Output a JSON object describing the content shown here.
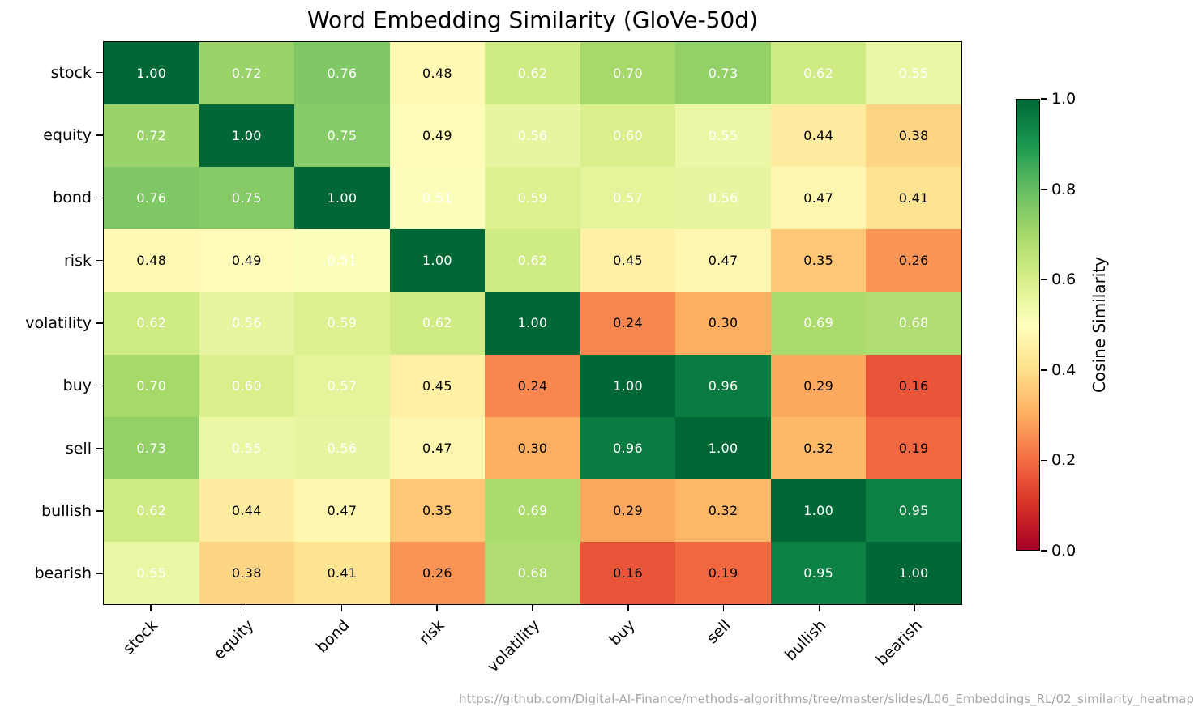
{
  "title": "Word Embedding Similarity (GloVe-50d)",
  "footer_url": "https://github.com/Digital-AI-Finance/methods-algorithms/tree/master/slides/L06_Embeddings_RL/02_similarity_heatmap",
  "chart_data": {
    "type": "heatmap",
    "title": "Word Embedding Similarity (GloVe-50d)",
    "x_labels": [
      "stock",
      "equity",
      "bond",
      "risk",
      "volatility",
      "buy",
      "sell",
      "bullish",
      "bearish"
    ],
    "y_labels": [
      "stock",
      "equity",
      "bond",
      "risk",
      "volatility",
      "buy",
      "sell",
      "bullish",
      "bearish"
    ],
    "matrix": [
      [
        1.0,
        0.72,
        0.76,
        0.48,
        0.62,
        0.7,
        0.73,
        0.62,
        0.55
      ],
      [
        0.72,
        1.0,
        0.75,
        0.49,
        0.56,
        0.6,
        0.55,
        0.44,
        0.38
      ],
      [
        0.76,
        0.75,
        1.0,
        0.51,
        0.59,
        0.57,
        0.56,
        0.47,
        0.41
      ],
      [
        0.48,
        0.49,
        0.51,
        1.0,
        0.62,
        0.45,
        0.47,
        0.35,
        0.26
      ],
      [
        0.62,
        0.56,
        0.59,
        0.62,
        1.0,
        0.24,
        0.3,
        0.69,
        0.68
      ],
      [
        0.7,
        0.6,
        0.57,
        0.45,
        0.24,
        1.0,
        0.96,
        0.29,
        0.16
      ],
      [
        0.73,
        0.55,
        0.56,
        0.47,
        0.3,
        0.96,
        1.0,
        0.32,
        0.19
      ],
      [
        0.62,
        0.44,
        0.47,
        0.35,
        0.69,
        0.29,
        0.32,
        1.0,
        0.95
      ],
      [
        0.55,
        0.38,
        0.41,
        0.26,
        0.68,
        0.16,
        0.19,
        0.95,
        1.0
      ]
    ],
    "vmin": 0.0,
    "vmax": 1.0,
    "colormap": {
      "name": "RdYlGn",
      "stops": [
        {
          "pos": 0.0,
          "color": "#a50026"
        },
        {
          "pos": 0.1,
          "color": "#d73027"
        },
        {
          "pos": 0.2,
          "color": "#f46d43"
        },
        {
          "pos": 0.3,
          "color": "#fdae61"
        },
        {
          "pos": 0.4,
          "color": "#fee08b"
        },
        {
          "pos": 0.5,
          "color": "#ffffbf"
        },
        {
          "pos": 0.6,
          "color": "#d9ef8b"
        },
        {
          "pos": 0.7,
          "color": "#a6d96a"
        },
        {
          "pos": 0.8,
          "color": "#66bd63"
        },
        {
          "pos": 0.9,
          "color": "#1a9850"
        },
        {
          "pos": 1.0,
          "color": "#006837"
        }
      ]
    },
    "colorbar": {
      "label": "Cosine Similarity",
      "ticks": [
        "0.0",
        "0.2",
        "0.4",
        "0.6",
        "0.8",
        "1.0"
      ]
    }
  }
}
